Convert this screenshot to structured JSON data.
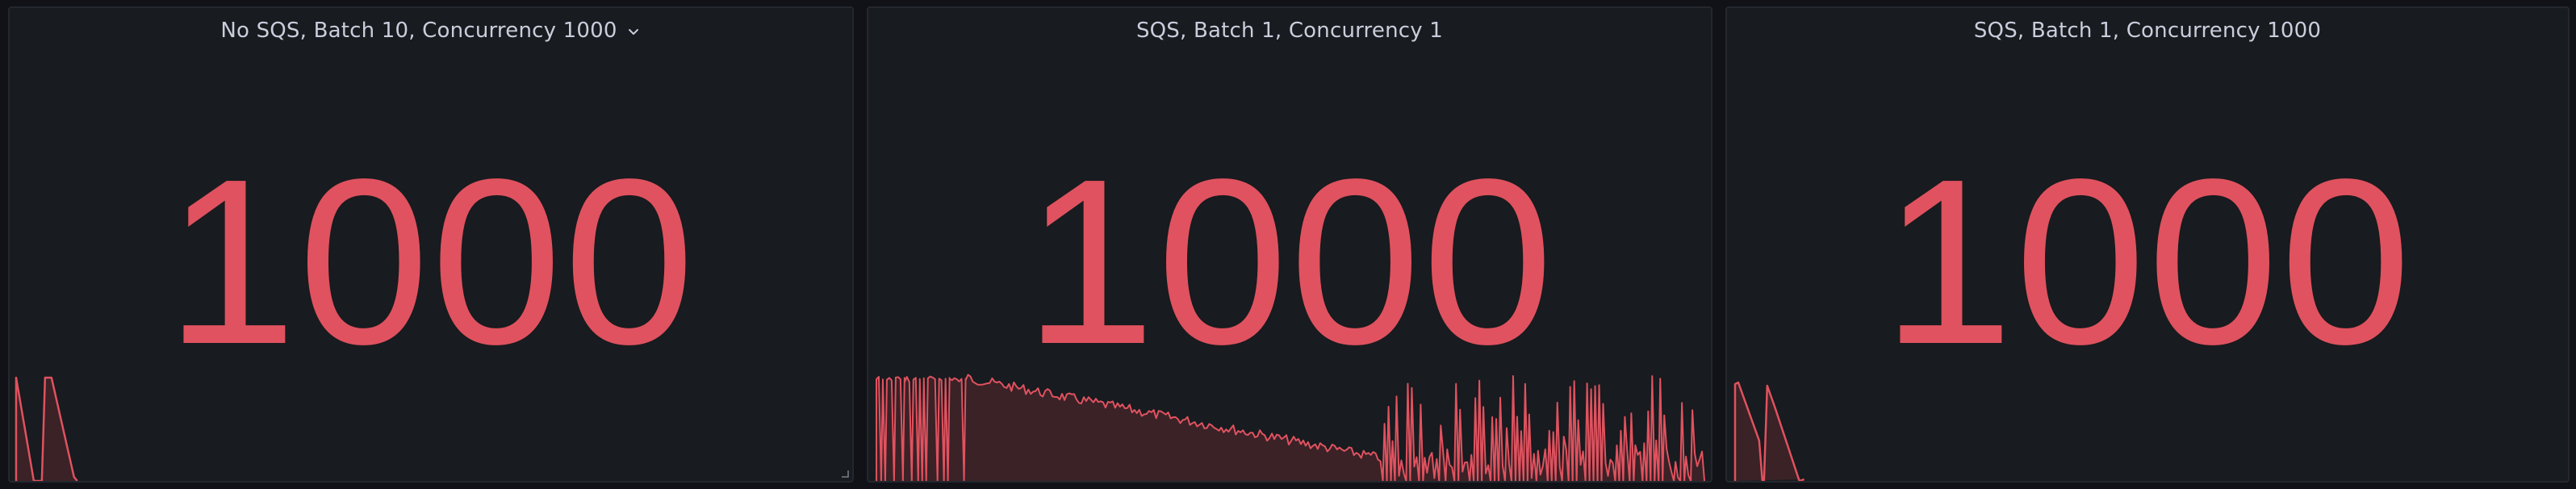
{
  "panels": [
    {
      "title": "No SQS, Batch 10, Concurrency 1000",
      "value": "1000",
      "has_menu": true,
      "chevron_icon": "chevron-down-icon"
    },
    {
      "title": "SQS, Batch 1, Concurrency 1",
      "value": "1000",
      "has_menu": false
    },
    {
      "title": "SQS, Batch 1, Concurrency 1000",
      "value": "1000",
      "has_menu": false
    }
  ],
  "colors": {
    "background": "#111217",
    "panel_background": "#181b1f",
    "panel_border": "#24272e",
    "title": "#ccccdc",
    "value": "#e0525f",
    "spark_fill": "#3a2227"
  }
}
